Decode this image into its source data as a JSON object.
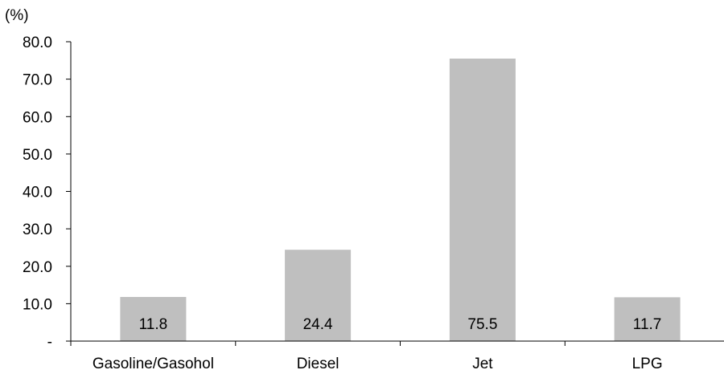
{
  "chart_data": {
    "type": "bar",
    "unit_label": "(%)",
    "categories": [
      "Gasoline/Gasohol",
      "Diesel",
      "Jet",
      "LPG"
    ],
    "values": [
      11.8,
      24.4,
      75.5,
      11.7
    ],
    "value_labels": [
      "11.8",
      "24.4",
      "75.5",
      "11.7"
    ],
    "ylim": [
      0,
      80
    ],
    "y_ticks": [
      0,
      10,
      20,
      30,
      40,
      50,
      60,
      70,
      80
    ],
    "y_tick_labels": [
      "-",
      "10.0",
      "20.0",
      "30.0",
      "40.0",
      "50.0",
      "60.0",
      "70.0",
      "80.0"
    ],
    "grid": false,
    "legend": "none",
    "bar_color": "#bfbfbf",
    "axis_color": "#000000"
  }
}
